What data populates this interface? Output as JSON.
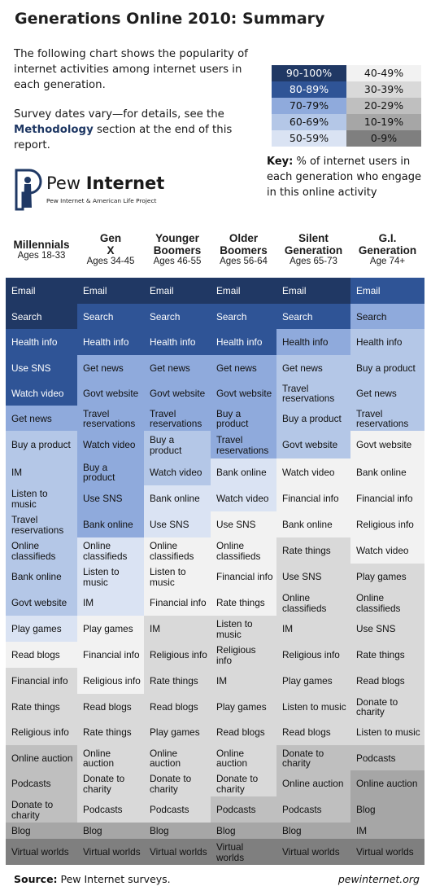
{
  "title": "Generations Online 2010: Summary",
  "intro_text": "The following chart shows the popularity of internet activities among internet users in each generation.",
  "survey_text_before": "Survey dates vary—for details, see the ",
  "survey_link": "Methodology",
  "survey_text_after": " section at the end of this report.",
  "logo": {
    "brand_plain": "Pew ",
    "brand_bold": "Internet",
    "tagline": "Pew Internet & American Life Project",
    "icon": "pew-logo-icon"
  },
  "legend": {
    "key_label": "Key:",
    "key_text": " % of internet users in each generation who engage in this online activity",
    "bands": [
      {
        "label": "90-100%",
        "bg": "#203864",
        "fg": "#ffffff"
      },
      {
        "label": "80-89%",
        "bg": "#2f5496",
        "fg": "#ffffff"
      },
      {
        "label": "70-79%",
        "bg": "#8faadc",
        "fg": "#111111"
      },
      {
        "label": "60-69%",
        "bg": "#b4c7e7",
        "fg": "#111111"
      },
      {
        "label": "50-59%",
        "bg": "#dae3f3",
        "fg": "#111111"
      },
      {
        "label": "40-49%",
        "bg": "#f2f2f2",
        "fg": "#111111"
      },
      {
        "label": "30-39%",
        "bg": "#d9d9d9",
        "fg": "#111111"
      },
      {
        "label": "20-29%",
        "bg": "#bfbfbf",
        "fg": "#111111"
      },
      {
        "label": "10-19%",
        "bg": "#a6a6a6",
        "fg": "#111111"
      },
      {
        "label": "0-9%",
        "bg": "#7f7f7f",
        "fg": "#111111"
      }
    ]
  },
  "chart_data": {
    "type": "table",
    "value_unit": "% of internet users in each generation who engage in this online activity",
    "columns": [
      {
        "name": "Millennials",
        "ages": "Ages 18-33",
        "cells": [
          [
            "Email",
            "90-100%"
          ],
          [
            "Search",
            "90-100%"
          ],
          [
            "Health info",
            "80-89%"
          ],
          [
            "Use SNS",
            "80-89%"
          ],
          [
            "Watch video",
            "80-89%"
          ],
          [
            "Get news",
            "70-79%"
          ],
          [
            "Buy a product",
            "60-69%"
          ],
          [
            "IM",
            "60-69%"
          ],
          [
            "Listen to music",
            "60-69%"
          ],
          [
            "Travel reservations",
            "60-69%"
          ],
          [
            "Online classifieds",
            "60-69%"
          ],
          [
            "Bank online",
            "60-69%"
          ],
          [
            "Govt website",
            "60-69%"
          ],
          [
            "Play games",
            "50-59%"
          ],
          [
            "Read blogs",
            "40-49%"
          ],
          [
            "Financial info",
            "30-39%"
          ],
          [
            "Rate things",
            "30-39%"
          ],
          [
            "Religious info",
            "30-39%"
          ],
          [
            "Online auction",
            "20-29%"
          ],
          [
            "Podcasts",
            "20-29%"
          ],
          [
            "Donate to charity",
            "20-29%"
          ],
          [
            "Blog",
            "10-19%"
          ],
          [
            "Virtual worlds",
            "0-9%"
          ]
        ]
      },
      {
        "name": "Gen X",
        "ages": "Ages 34-45",
        "cells": [
          [
            "Email",
            "90-100%"
          ],
          [
            "Search",
            "80-89%"
          ],
          [
            "Health info",
            "80-89%"
          ],
          [
            "Get news",
            "70-79%"
          ],
          [
            "Govt website",
            "70-79%"
          ],
          [
            "Travel reservations",
            "70-79%"
          ],
          [
            "Watch video",
            "70-79%"
          ],
          [
            "Buy a product",
            "70-79%"
          ],
          [
            "Use SNS",
            "70-79%"
          ],
          [
            "Bank online",
            "70-79%"
          ],
          [
            "Online classifieds",
            "50-59%"
          ],
          [
            "Listen to music",
            "50-59%"
          ],
          [
            "IM",
            "50-59%"
          ],
          [
            "Play games",
            "40-49%"
          ],
          [
            "Financial info",
            "40-49%"
          ],
          [
            "Religious info",
            "40-49%"
          ],
          [
            "Read blogs",
            "30-39%"
          ],
          [
            "Rate things",
            "30-39%"
          ],
          [
            "Online auction",
            "30-39%"
          ],
          [
            "Donate to charity",
            "30-39%"
          ],
          [
            "Podcasts",
            "30-39%"
          ],
          [
            "Blog",
            "10-19%"
          ],
          [
            "Virtual worlds",
            "0-9%"
          ]
        ]
      },
      {
        "name": "Younger Boomers",
        "ages": "Ages 46-55",
        "cells": [
          [
            "Email",
            "90-100%"
          ],
          [
            "Search",
            "80-89%"
          ],
          [
            "Health info",
            "80-89%"
          ],
          [
            "Get news",
            "70-79%"
          ],
          [
            "Govt website",
            "70-79%"
          ],
          [
            "Travel reservations",
            "70-79%"
          ],
          [
            "Buy a product",
            "60-69%"
          ],
          [
            "Watch video",
            "60-69%"
          ],
          [
            "Bank online",
            "50-59%"
          ],
          [
            "Use SNS",
            "50-59%"
          ],
          [
            "Online classifieds",
            "40-49%"
          ],
          [
            "Listen to music",
            "40-49%"
          ],
          [
            "Financial info",
            "40-49%"
          ],
          [
            "IM",
            "30-39%"
          ],
          [
            "Religious info",
            "30-39%"
          ],
          [
            "Rate things",
            "30-39%"
          ],
          [
            "Read blogs",
            "30-39%"
          ],
          [
            "Play games",
            "30-39%"
          ],
          [
            "Online auction",
            "30-39%"
          ],
          [
            "Donate to charity",
            "30-39%"
          ],
          [
            "Podcasts",
            "30-39%"
          ],
          [
            "Blog",
            "10-19%"
          ],
          [
            "Virtual worlds",
            "0-9%"
          ]
        ]
      },
      {
        "name": "Older Boomers",
        "ages": "Ages 56-64",
        "cells": [
          [
            "Email",
            "90-100%"
          ],
          [
            "Search",
            "80-89%"
          ],
          [
            "Health info",
            "80-89%"
          ],
          [
            "Get news",
            "70-79%"
          ],
          [
            "Govt website",
            "70-79%"
          ],
          [
            "Buy a product",
            "70-79%"
          ],
          [
            "Travel reservations",
            "70-79%"
          ],
          [
            "Bank online",
            "50-59%"
          ],
          [
            "Watch video",
            "50-59%"
          ],
          [
            "Use SNS",
            "40-49%"
          ],
          [
            "Online classifieds",
            "40-49%"
          ],
          [
            "Financial info",
            "40-49%"
          ],
          [
            "Rate things",
            "40-49%"
          ],
          [
            "Listen to music",
            "30-39%"
          ],
          [
            "Religious info",
            "30-39%"
          ],
          [
            "IM",
            "30-39%"
          ],
          [
            "Play games",
            "30-39%"
          ],
          [
            "Read blogs",
            "30-39%"
          ],
          [
            "Online auction",
            "30-39%"
          ],
          [
            "Donate to charity",
            "30-39%"
          ],
          [
            "Podcasts",
            "20-29%"
          ],
          [
            "Blog",
            "10-19%"
          ],
          [
            "Virtual worlds",
            "0-9%"
          ]
        ]
      },
      {
        "name": "Silent Generation",
        "ages": "Ages 65-73",
        "cells": [
          [
            "Email",
            "90-100%"
          ],
          [
            "Search",
            "80-89%"
          ],
          [
            "Health info",
            "70-79%"
          ],
          [
            "Get news",
            "60-69%"
          ],
          [
            "Travel reservations",
            "60-69%"
          ],
          [
            "Buy a product",
            "60-69%"
          ],
          [
            "Govt website",
            "60-69%"
          ],
          [
            "Watch video",
            "40-49%"
          ],
          [
            "Financial info",
            "40-49%"
          ],
          [
            "Bank online",
            "40-49%"
          ],
          [
            "Rate things",
            "30-39%"
          ],
          [
            "Use SNS",
            "30-39%"
          ],
          [
            "Online classifieds",
            "30-39%"
          ],
          [
            "IM",
            "30-39%"
          ],
          [
            "Religious info",
            "30-39%"
          ],
          [
            "Play games",
            "30-39%"
          ],
          [
            "Listen to music",
            "30-39%"
          ],
          [
            "Read blogs",
            "30-39%"
          ],
          [
            "Donate to charity",
            "20-29%"
          ],
          [
            "Online auction",
            "20-29%"
          ],
          [
            "Podcasts",
            "20-29%"
          ],
          [
            "Blog",
            "10-19%"
          ],
          [
            "Virtual worlds",
            "0-9%"
          ]
        ]
      },
      {
        "name": "G.I. Generation",
        "ages": "Age 74+",
        "cells": [
          [
            "Email",
            "80-89%"
          ],
          [
            "Search",
            "70-79%"
          ],
          [
            "Health info",
            "60-69%"
          ],
          [
            "Buy a product",
            "60-69%"
          ],
          [
            "Get news",
            "60-69%"
          ],
          [
            "Travel reservations",
            "60-69%"
          ],
          [
            "Govt website",
            "40-49%"
          ],
          [
            "Bank online",
            "40-49%"
          ],
          [
            "Financial info",
            "40-49%"
          ],
          [
            "Religious info",
            "40-49%"
          ],
          [
            "Watch video",
            "40-49%"
          ],
          [
            "Play games",
            "30-39%"
          ],
          [
            "Online classifieds",
            "30-39%"
          ],
          [
            "Use SNS",
            "30-39%"
          ],
          [
            "Rate things",
            "30-39%"
          ],
          [
            "Read blogs",
            "30-39%"
          ],
          [
            "Donate to charity",
            "30-39%"
          ],
          [
            "Listen to music",
            "30-39%"
          ],
          [
            "Podcasts",
            "20-29%"
          ],
          [
            "Online auction",
            "10-19%"
          ],
          [
            "Blog",
            "10-19%"
          ],
          [
            "IM",
            "10-19%"
          ],
          [
            "Virtual worlds",
            "0-9%"
          ]
        ]
      }
    ]
  },
  "footer": {
    "source_label": "Source:",
    "source_text": " Pew Internet surveys.",
    "site": "pewinternet.org"
  }
}
